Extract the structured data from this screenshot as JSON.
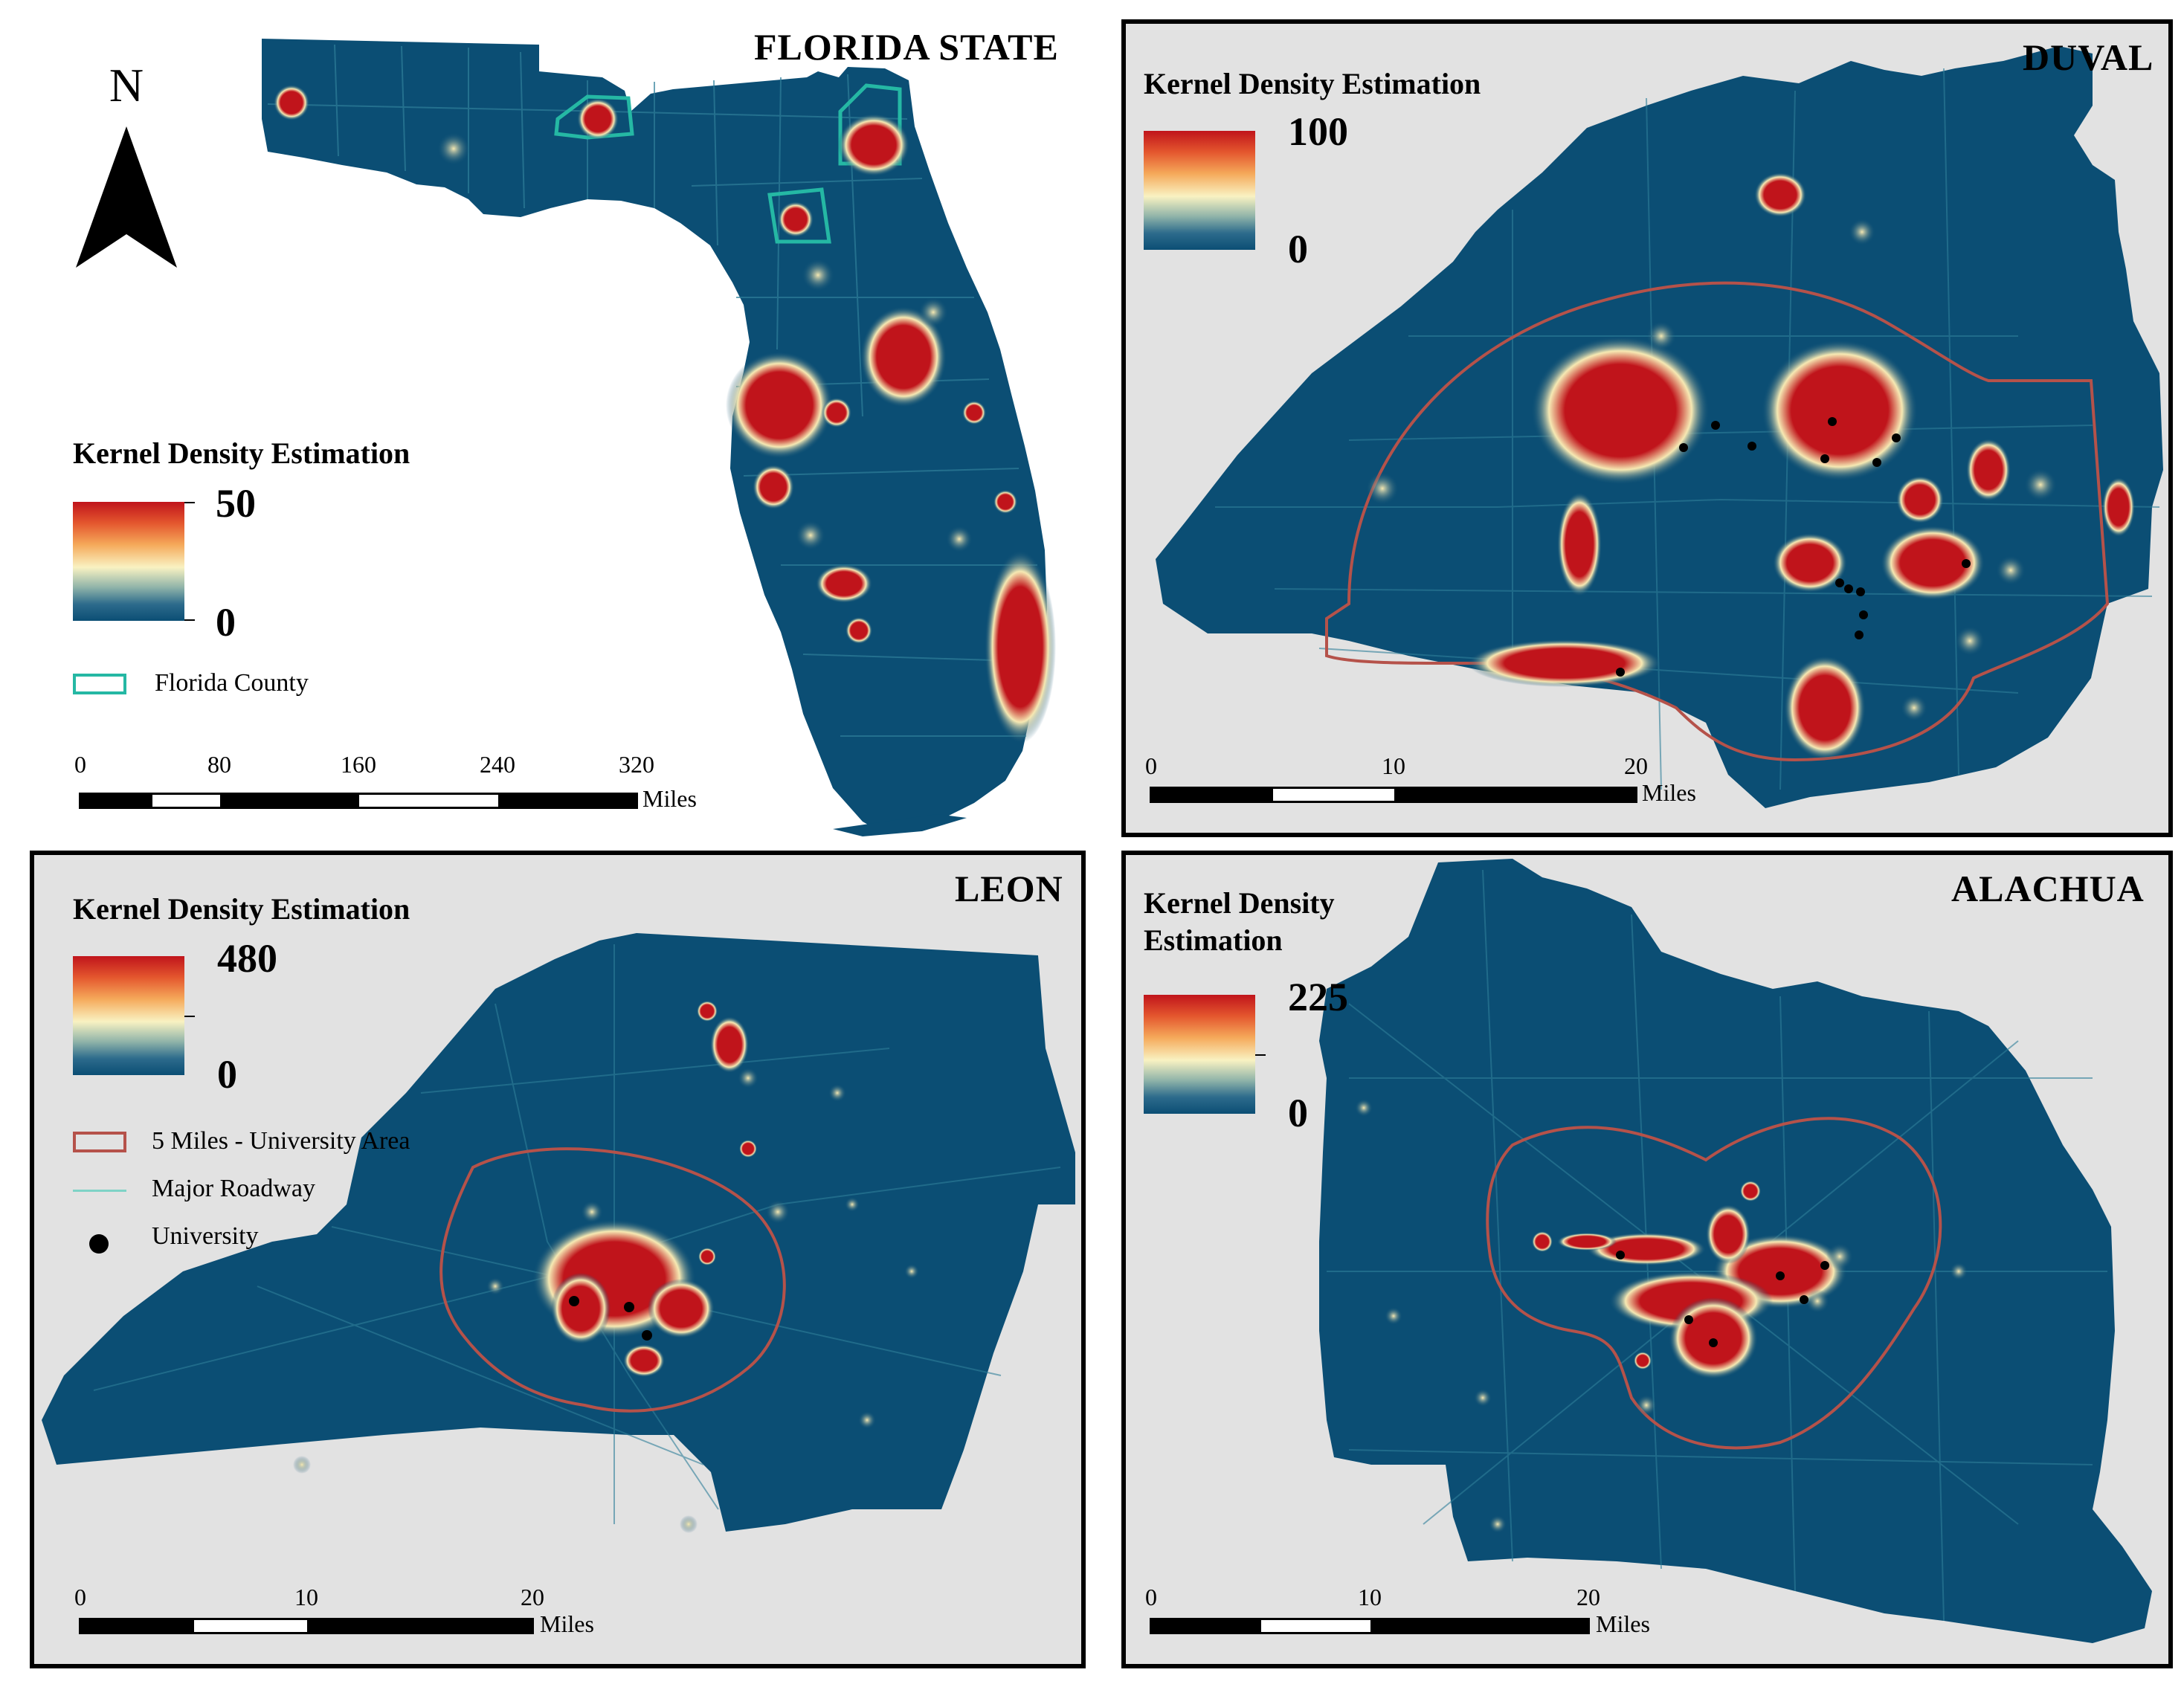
{
  "colors": {
    "map_fill": "#0b4e74",
    "hotspot": "#c0141b",
    "halo": "#f6e9b3",
    "panel_bg": "#e2e2e2",
    "county_outline": "#25b8a4",
    "university_area": "#b5524a",
    "roadway": "#7fd3c6"
  },
  "icons": {
    "north_arrow": "north-arrow-icon",
    "university": "filled-dot-icon"
  },
  "panels": {
    "florida": {
      "title": "FLORIDA STATE",
      "north_label": "N",
      "legend": {
        "title": "Kernel Density Estimation",
        "max": "50",
        "min": "0",
        "county_label": "Florida County"
      },
      "scale": {
        "ticks": [
          "0",
          "80",
          "160",
          "240",
          "320"
        ],
        "unit": "Miles"
      }
    },
    "duval": {
      "title": "DUVAL",
      "legend": {
        "title": "Kernel Density Estimation",
        "max": "100",
        "min": "0"
      },
      "scale": {
        "ticks": [
          "0",
          "10",
          "20"
        ],
        "unit": "Miles"
      }
    },
    "leon": {
      "title": "LEON",
      "legend": {
        "title": "Kernel Density Estimation",
        "max": "480",
        "min": "0",
        "university_area_label": "5 Miles - University Area",
        "roadway_label": "Major Roadway",
        "university_label": "University"
      },
      "scale": {
        "ticks": [
          "0",
          "10",
          "20"
        ],
        "unit": "Miles"
      }
    },
    "alachua": {
      "title": "ALACHUA",
      "legend": {
        "title_line1": "Kernel Density",
        "title_line2": "Estimation",
        "max": "225",
        "min": "0"
      },
      "scale": {
        "ticks": [
          "0",
          "10",
          "20"
        ],
        "unit": "Miles"
      }
    }
  }
}
